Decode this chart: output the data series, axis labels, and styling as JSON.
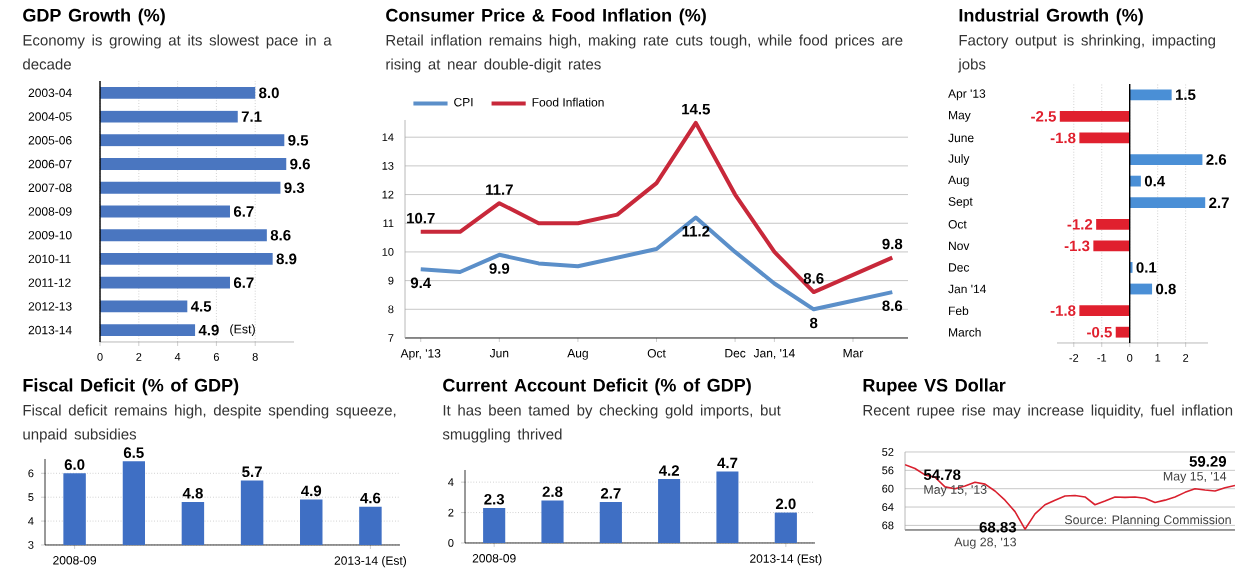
{
  "chart_data": [
    {
      "type": "bar",
      "orientation": "horizontal",
      "title": "GDP Growth (%)",
      "subtitle": "Economy is growing at its slowest pace in a decade",
      "categories": [
        "2003-04",
        "2004-05",
        "2005-06",
        "2006-07",
        "2007-08",
        "2008-09",
        "2009-10",
        "2010-11",
        "2011-12",
        "2012-13",
        "2013-14"
      ],
      "values": [
        8.0,
        7.1,
        9.5,
        9.6,
        9.3,
        6.7,
        8.6,
        8.9,
        6.7,
        4.5,
        4.9
      ],
      "color": "#4a76c0",
      "value_labels": [
        "8.0",
        "7.1",
        "9.5",
        "9.6",
        "9.3",
        "6.7",
        "8.6",
        "8.9",
        "6.7",
        "4.5",
        "4.9"
      ],
      "xlim": [
        0,
        10
      ],
      "xticks": [
        0,
        2,
        4,
        6,
        8
      ],
      "grid": "x",
      "annotations": [
        {
          "text": "(Est)",
          "x": 4.9,
          "y": "2013-14"
        }
      ]
    },
    {
      "type": "line",
      "title": "Consumer Price & Food Inflation (%)",
      "subtitle": "Retail inflation remains high, making rate cuts tough, while food prices are rising at near double-digit rates",
      "categories": [
        "Apr, '13",
        null,
        "Jun",
        null,
        "Aug",
        null,
        "Oct",
        null,
        "Dec",
        "Jan, '14",
        null,
        "Mar",
        null
      ],
      "series": [
        {
          "name": "CPI",
          "color": "#5b8fc9",
          "values": [
            9.4,
            9.3,
            9.9,
            9.6,
            9.5,
            9.8,
            10.1,
            11.2,
            10.0,
            8.9,
            8,
            8.3,
            8.6
          ],
          "value_labels": [
            "9.4",
            null,
            "9.9",
            null,
            null,
            null,
            null,
            "11.2",
            null,
            null,
            "8",
            null,
            "8.6"
          ]
        },
        {
          "name": "Food Inflation",
          "color": "#c8283a",
          "values": [
            10.7,
            10.7,
            11.7,
            11.0,
            11.0,
            11.3,
            12.4,
            14.5,
            12.0,
            10.0,
            8.6,
            9.2,
            9.8
          ],
          "value_labels": [
            "10.7",
            null,
            "11.7",
            null,
            null,
            null,
            null,
            "14.5",
            null,
            null,
            "8.6",
            null,
            "9.8"
          ]
        }
      ],
      "ylim": [
        7,
        14.6
      ],
      "yticks": [
        7,
        8,
        9,
        10,
        11,
        12,
        13,
        14
      ],
      "grid": "y",
      "legend": "top left"
    },
    {
      "type": "bar",
      "orientation": "horizontal",
      "title": "Industrial Growth (%)",
      "subtitle": "Factory output is shrinking, impacting jobs",
      "categories": [
        "Apr '13",
        "May",
        "June",
        "July",
        "Aug",
        "Sept",
        "Oct",
        "Nov",
        "Dec",
        "Jan '14",
        "Feb",
        "March"
      ],
      "values": [
        1.5,
        -2.5,
        -1.8,
        2.6,
        0.4,
        2.7,
        -1.2,
        -1.3,
        0.1,
        0.8,
        -1.8,
        -0.5
      ],
      "colors": [
        "#4a8fd6",
        "#e0202e",
        "#e0202e",
        "#4a8fd6",
        "#4a8fd6",
        "#4a8fd6",
        "#e0202e",
        "#e0202e",
        "#4a8fd6",
        "#4a8fd6",
        "#e0202e",
        "#e0202e"
      ],
      "xlim": [
        -2.6,
        2.8
      ],
      "xticks": [
        -2,
        -1,
        0,
        1,
        2
      ],
      "grid": "x",
      "data_labels": true
    },
    {
      "type": "bar",
      "title": "Fiscal Deficit (% of GDP)",
      "subtitle": "Fiscal deficit remains high, despite spending squeeze, unpaid subsidies",
      "categories": [
        "2008-09",
        null,
        null,
        null,
        null,
        "2013-14 (Est)"
      ],
      "values": [
        6.0,
        6.5,
        4.8,
        5.7,
        4.9,
        4.6
      ],
      "color": "#3f6fc4",
      "value_labels": [
        "6.0",
        "6.5",
        "4.8",
        "5.7",
        "4.9",
        "4.6"
      ],
      "ylim": [
        3,
        6.6
      ],
      "yticks": [
        3,
        4,
        5,
        6
      ],
      "grid": "y"
    },
    {
      "type": "bar",
      "title": "Current Account Deficit (% of GDP)",
      "subtitle": "It has been tamed by checking gold imports, but smuggling thrived",
      "categories": [
        "2008-09",
        null,
        null,
        null,
        null,
        "2013-14 (Est)"
      ],
      "values": [
        2.3,
        2.8,
        2.7,
        4.2,
        4.7,
        2.0
      ],
      "color": "#3f6fc4",
      "value_labels": [
        "2.3",
        "2.8",
        "2.7",
        "4.2",
        "4.7",
        "2.0"
      ],
      "ylim": [
        0,
        4.8
      ],
      "yticks": [
        0,
        2,
        4
      ],
      "grid": "y"
    },
    {
      "type": "line",
      "title": "Rupee VS Dollar",
      "subtitle": "Recent rupee rise may increase liquidity, fuel inflation",
      "categories": [
        null,
        null,
        null,
        null,
        null,
        null,
        null,
        null,
        null,
        null,
        null,
        null,
        null,
        null,
        null,
        null,
        null,
        null,
        null,
        null,
        null,
        null,
        null,
        null,
        null,
        null,
        null,
        null,
        null,
        null,
        null,
        null,
        null,
        null
      ],
      "values": [
        54.78,
        55.6,
        57.0,
        57.5,
        59.6,
        60.0,
        59.4,
        58.6,
        59.0,
        60.5,
        62.5,
        65.0,
        68.83,
        65.5,
        63.5,
        62.5,
        61.6,
        61.5,
        61.8,
        63.5,
        62.7,
        61.8,
        61.9,
        61.8,
        62.1,
        63.0,
        62.5,
        61.8,
        60.8,
        60.0,
        60.3,
        60.5,
        59.8,
        59.29
      ],
      "value_labels": [
        "54.78",
        null,
        null,
        null,
        null,
        null,
        null,
        null,
        null,
        null,
        null,
        null,
        "68.83",
        null,
        null,
        null,
        null,
        null,
        null,
        null,
        null,
        null,
        null,
        null,
        null,
        null,
        null,
        null,
        null,
        null,
        null,
        null,
        null,
        "59.29"
      ],
      "color": "#d9202e",
      "ylim": [
        69,
        52
      ],
      "yticks": [
        52,
        56,
        60,
        64,
        68
      ],
      "grid": "y",
      "tick_labels": "y",
      "annotations": [
        "May 15, '13",
        "Aug 28, '13",
        "May 15, '14",
        "Source: Planning Commission"
      ]
    }
  ]
}
